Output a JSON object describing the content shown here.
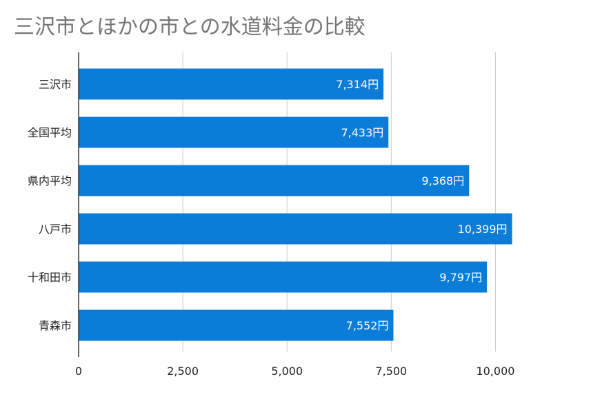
{
  "chart_data": {
    "type": "bar",
    "orientation": "horizontal",
    "title": "三沢市とほかの市との水道料金の比較",
    "categories": [
      "三沢市",
      "全国平均",
      "県内平均",
      "八戸市",
      "十和田市",
      "青森市"
    ],
    "values": [
      7314,
      7433,
      9368,
      10399,
      9797,
      7552
    ],
    "data_labels": [
      "7,314円",
      "7,433円",
      "9,368円",
      "10,399円",
      "9,797円",
      "7,552円"
    ],
    "x_ticks": [
      0,
      2500,
      5000,
      7500,
      10000
    ],
    "x_tick_labels": [
      "0",
      "2,500",
      "5,000",
      "7,500",
      "10,000"
    ],
    "xlim": [
      0,
      11250
    ],
    "xlabel": "",
    "ylabel": "",
    "grid": true,
    "legend": "none",
    "colors": {
      "bar": "#0B7CD8",
      "grid": "#cccccc",
      "axis": "#333333",
      "title": "#757575"
    }
  }
}
